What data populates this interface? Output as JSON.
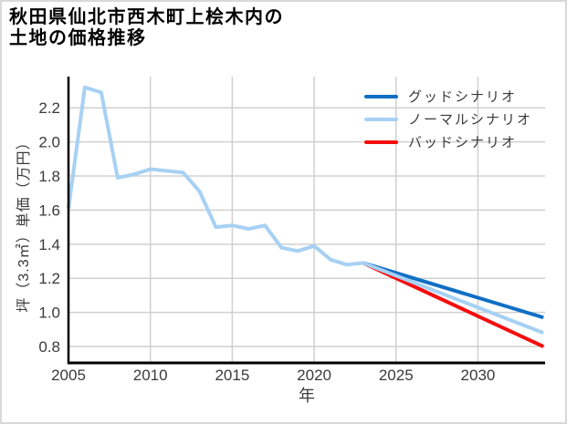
{
  "title": {
    "line1": "秋田県仙北市西木町上桧木内の",
    "line2": "土地の価格推移"
  },
  "colors": {
    "background": "#ffffff",
    "frame_border": "#d9d9d9",
    "grid": "#d0d0d0",
    "axis": "#000000",
    "tick_text": "#3a3a3a",
    "good_blue": "#0f6fc5",
    "normal_light_blue": "#a7d1f4",
    "bad_red": "#f50d0d"
  },
  "chart_data": {
    "type": "line",
    "title": "秋田県仙北市西木町上桧木内の土地の価格推移",
    "xlabel": "年",
    "ylabel": "坪（3.3㎡）単価（万円）",
    "unit": "万円",
    "grid": true,
    "legend_position": "top-right",
    "xlim": [
      2005,
      2034.1
    ],
    "ylim": [
      0.704,
      2.383
    ],
    "x_ticks": [
      2005,
      2010,
      2015,
      2020,
      2025,
      2030
    ],
    "y_ticks": [
      0.8,
      1.0,
      1.2,
      1.4,
      1.6,
      1.8,
      2.0,
      2.2
    ],
    "series": [
      {
        "role": "historical",
        "color": "#a7d1f4",
        "x": [
          2005,
          2006,
          2007,
          2008,
          2009,
          2010,
          2011,
          2012,
          2013,
          2014,
          2015,
          2016,
          2017,
          2018,
          2019,
          2020,
          2021,
          2022,
          2023
        ],
        "values": [
          1.61,
          2.32,
          2.29,
          1.79,
          1.81,
          1.84,
          1.83,
          1.82,
          1.71,
          1.5,
          1.51,
          1.49,
          1.51,
          1.38,
          1.36,
          1.39,
          1.31,
          1.28,
          1.29
        ]
      },
      {
        "role": "forecast-good",
        "color": "#0f6fc5",
        "x": [
          2023,
          2034
        ],
        "values": [
          1.29,
          0.97
        ]
      },
      {
        "role": "forecast-normal",
        "color": "#a7d1f4",
        "x": [
          2023,
          2034
        ],
        "values": [
          1.29,
          0.88
        ]
      },
      {
        "role": "forecast-bad",
        "color": "#f50d0d",
        "x": [
          2023,
          2034
        ],
        "values": [
          1.29,
          0.8
        ]
      }
    ],
    "legend": [
      {
        "label": "グッドシナリオ",
        "color": "#0f6fc5"
      },
      {
        "label": "ノーマルシナリオ",
        "color": "#a7d1f4"
      },
      {
        "label": "バッドシナリオ",
        "color": "#f50d0d"
      }
    ]
  }
}
